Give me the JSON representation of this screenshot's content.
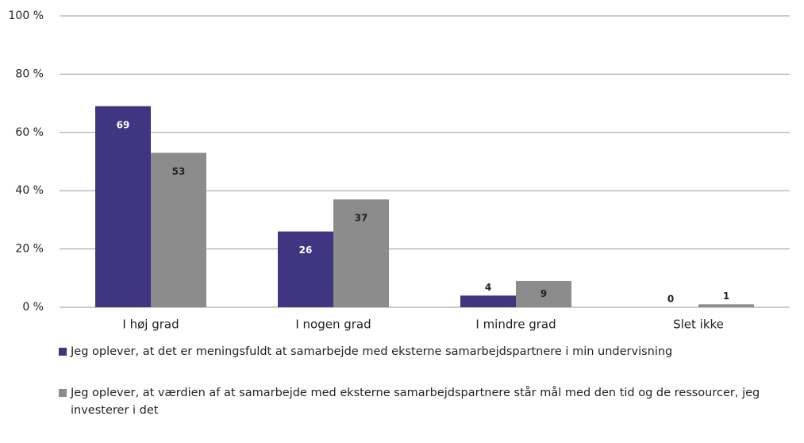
{
  "chart_data": {
    "type": "bar",
    "categories": [
      "I høj grad",
      "I nogen grad",
      "I mindre grad",
      "Slet ikke"
    ],
    "series": [
      {
        "name": "Jeg oplever, at det er meningsfuldt at samarbejde med eksterne samarbejdspartnere i min undervisning",
        "color": "#3f3580",
        "values": [
          69,
          26,
          4,
          0
        ]
      },
      {
        "name": "Jeg oplever, at værdien af at samarbejde med eksterne samarbejdspartnere står mål med den tid og de ressourcer, jeg investerer i det",
        "color": "#8c8c8c",
        "values": [
          53,
          37,
          9,
          1
        ]
      }
    ],
    "ylim": [
      0,
      100
    ],
    "yticks": [
      {
        "value": 0,
        "label": "0 %"
      },
      {
        "value": 20,
        "label": "20 %"
      },
      {
        "value": 40,
        "label": "40 %"
      },
      {
        "value": 60,
        "label": "60 %"
      },
      {
        "value": 80,
        "label": "80 %"
      },
      {
        "value": 100,
        "label": "100 %"
      }
    ],
    "grid": true,
    "legend": "bottom"
  }
}
